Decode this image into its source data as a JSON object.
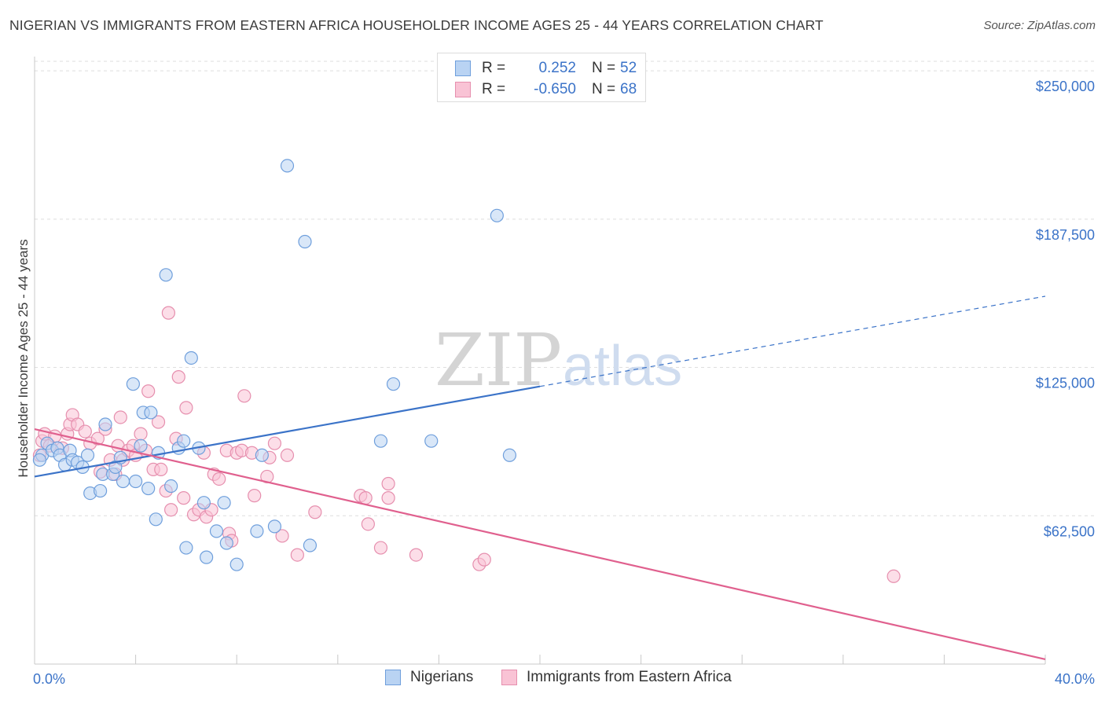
{
  "title": "NIGERIAN VS IMMIGRANTS FROM EASTERN AFRICA HOUSEHOLDER INCOME AGES 25 - 44 YEARS CORRELATION CHART",
  "source": "Source: ZipAtlas.com",
  "watermark": {
    "part1": "ZIP",
    "part2": "atlas"
  },
  "legend_top": [
    {
      "r_label": "R =",
      "r_value": "0.252",
      "n_label": "N =",
      "n_value": "52",
      "fill": "#b9d3f3",
      "stroke": "#6f9fdc"
    },
    {
      "r_label": "R =",
      "r_value": "-0.650",
      "n_label": "N =",
      "n_value": "68",
      "fill": "#f9c3d5",
      "stroke": "#e68fae"
    }
  ],
  "legend_bottom": [
    {
      "label": "Nigerians",
      "fill": "#b9d3f3",
      "stroke": "#6f9fdc"
    },
    {
      "label": "Immigrants from Eastern Africa",
      "fill": "#f9c3d5",
      "stroke": "#e68fae"
    }
  ],
  "chart_data": {
    "type": "scatter",
    "title": "NIGERIAN VS IMMIGRANTS FROM EASTERN AFRICA HOUSEHOLDER INCOME AGES 25 - 44 YEARS CORRELATION CHART",
    "ylabel": "Householder Income Ages 25 - 44 years",
    "xlabel": "",
    "x_tick_labels": [
      "0.0%",
      "40.0%"
    ],
    "y_tick_labels": [
      "$250,000",
      "$187,500",
      "$125,000",
      "$62,500"
    ],
    "y_ticks": [
      250000,
      187500,
      125000,
      62500
    ],
    "xlim": [
      0,
      40
    ],
    "ylim": [
      0,
      256000
    ],
    "grid": "horizontal dashed",
    "legend_position": "top-center",
    "colors": {
      "nigerians": "#3b73c8",
      "eastern_africa": "#e0608e"
    },
    "series": [
      {
        "name": "Nigerians",
        "points": [
          [
            0.3,
            88000
          ],
          [
            0.5,
            93000
          ],
          [
            0.7,
            90000
          ],
          [
            0.9,
            91000
          ],
          [
            1.0,
            88000
          ],
          [
            1.2,
            84000
          ],
          [
            1.4,
            90000
          ],
          [
            1.5,
            86000
          ],
          [
            1.7,
            85000
          ],
          [
            1.9,
            83000
          ],
          [
            2.1,
            88000
          ],
          [
            2.2,
            72000
          ],
          [
            2.6,
            73000
          ],
          [
            2.7,
            80000
          ],
          [
            2.8,
            101000
          ],
          [
            3.1,
            80000
          ],
          [
            3.2,
            83000
          ],
          [
            3.4,
            87000
          ],
          [
            3.5,
            77000
          ],
          [
            3.9,
            118000
          ],
          [
            4.0,
            77000
          ],
          [
            4.2,
            92000
          ],
          [
            4.3,
            106000
          ],
          [
            4.5,
            74000
          ],
          [
            4.6,
            106000
          ],
          [
            4.8,
            61000
          ],
          [
            4.9,
            89000
          ],
          [
            5.2,
            164000
          ],
          [
            5.4,
            75000
          ],
          [
            5.7,
            91000
          ],
          [
            5.9,
            94000
          ],
          [
            6.0,
            49000
          ],
          [
            6.2,
            129000
          ],
          [
            6.5,
            91000
          ],
          [
            6.7,
            68000
          ],
          [
            6.8,
            45000
          ],
          [
            7.2,
            56000
          ],
          [
            7.6,
            51000
          ],
          [
            7.5,
            68000
          ],
          [
            8.0,
            42000
          ],
          [
            8.8,
            56000
          ],
          [
            9.0,
            88000
          ],
          [
            9.5,
            58000
          ],
          [
            10.0,
            210000
          ],
          [
            10.7,
            178000
          ],
          [
            10.9,
            50000
          ],
          [
            13.7,
            94000
          ],
          [
            14.2,
            118000
          ],
          [
            15.7,
            94000
          ],
          [
            18.3,
            189000
          ],
          [
            18.8,
            88000
          ],
          [
            0.2,
            86000
          ]
        ],
        "trend": {
          "x": [
            0,
            20,
            40
          ],
          "y": [
            79000,
            117000,
            155000
          ],
          "solid_until_x": 20
        }
      },
      {
        "name": "Immigrants from Eastern Africa",
        "points": [
          [
            0.3,
            94000
          ],
          [
            0.4,
            97000
          ],
          [
            0.6,
            92000
          ],
          [
            0.8,
            96000
          ],
          [
            1.1,
            91000
          ],
          [
            1.3,
            97000
          ],
          [
            1.4,
            101000
          ],
          [
            1.5,
            105000
          ],
          [
            1.7,
            101000
          ],
          [
            2.0,
            98000
          ],
          [
            2.2,
            93000
          ],
          [
            2.5,
            95000
          ],
          [
            2.6,
            81000
          ],
          [
            2.8,
            99000
          ],
          [
            3.0,
            86000
          ],
          [
            3.2,
            80000
          ],
          [
            3.3,
            92000
          ],
          [
            3.4,
            104000
          ],
          [
            3.5,
            86000
          ],
          [
            3.7,
            90000
          ],
          [
            3.9,
            92000
          ],
          [
            4.0,
            88000
          ],
          [
            4.2,
            97000
          ],
          [
            4.4,
            90000
          ],
          [
            4.5,
            115000
          ],
          [
            4.7,
            82000
          ],
          [
            4.9,
            102000
          ],
          [
            5.0,
            82000
          ],
          [
            5.2,
            73000
          ],
          [
            5.3,
            148000
          ],
          [
            5.4,
            65000
          ],
          [
            5.6,
            95000
          ],
          [
            5.7,
            121000
          ],
          [
            5.9,
            70000
          ],
          [
            6.0,
            108000
          ],
          [
            6.3,
            63000
          ],
          [
            6.5,
            65000
          ],
          [
            6.7,
            89000
          ],
          [
            6.8,
            62000
          ],
          [
            7.0,
            65000
          ],
          [
            7.1,
            80000
          ],
          [
            7.3,
            78000
          ],
          [
            7.6,
            90000
          ],
          [
            7.7,
            55000
          ],
          [
            7.8,
            52000
          ],
          [
            8.0,
            89000
          ],
          [
            8.2,
            90000
          ],
          [
            8.3,
            113000
          ],
          [
            8.6,
            89000
          ],
          [
            8.7,
            71000
          ],
          [
            9.2,
            79000
          ],
          [
            9.3,
            87000
          ],
          [
            9.5,
            93000
          ],
          [
            9.8,
            54000
          ],
          [
            10.0,
            88000
          ],
          [
            10.4,
            46000
          ],
          [
            11.1,
            64000
          ],
          [
            12.9,
            71000
          ],
          [
            13.1,
            70000
          ],
          [
            13.2,
            59000
          ],
          [
            13.7,
            49000
          ],
          [
            14.0,
            76000
          ],
          [
            14.0,
            70000
          ],
          [
            15.1,
            46000
          ],
          [
            17.6,
            42000
          ],
          [
            17.8,
            44000
          ],
          [
            34.0,
            37000
          ],
          [
            0.2,
            88000
          ]
        ],
        "trend": {
          "x": [
            0,
            40
          ],
          "y": [
            99000,
            2000
          ]
        }
      }
    ]
  }
}
